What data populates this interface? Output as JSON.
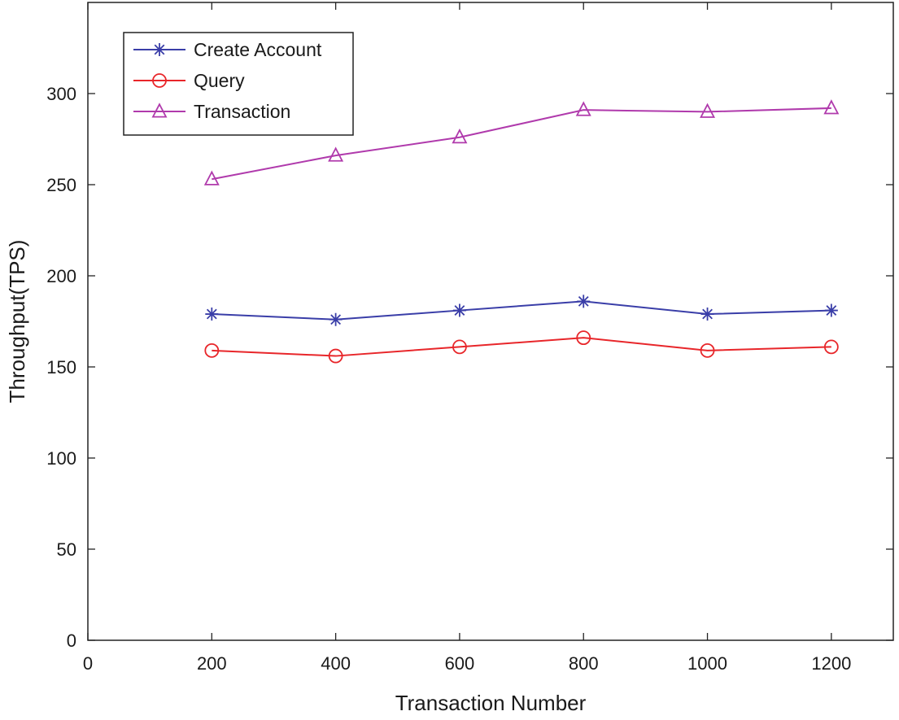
{
  "chart_data": {
    "type": "line",
    "title": "",
    "xlabel": "Transaction Number",
    "ylabel": "Throughput(TPS)",
    "xlim": [
      0,
      1300
    ],
    "ylim": [
      0,
      350
    ],
    "xticks": [
      0,
      200,
      400,
      600,
      800,
      1000,
      1200
    ],
    "yticks": [
      0,
      50,
      100,
      150,
      200,
      250,
      300
    ],
    "x": [
      200,
      400,
      600,
      800,
      1000,
      1200
    ],
    "legend_position": "top-left",
    "grid": false,
    "series": [
      {
        "name": "Create Account",
        "values": [
          179,
          176,
          181,
          186,
          179,
          181
        ],
        "color": "#3a3ea8",
        "marker": "asterisk"
      },
      {
        "name": "Query",
        "values": [
          159,
          156,
          161,
          166,
          159,
          161
        ],
        "color": "#e8262a",
        "marker": "circle"
      },
      {
        "name": "Transaction",
        "values": [
          253,
          266,
          276,
          291,
          290,
          292
        ],
        "color": "#b03aac",
        "marker": "triangle"
      }
    ]
  }
}
